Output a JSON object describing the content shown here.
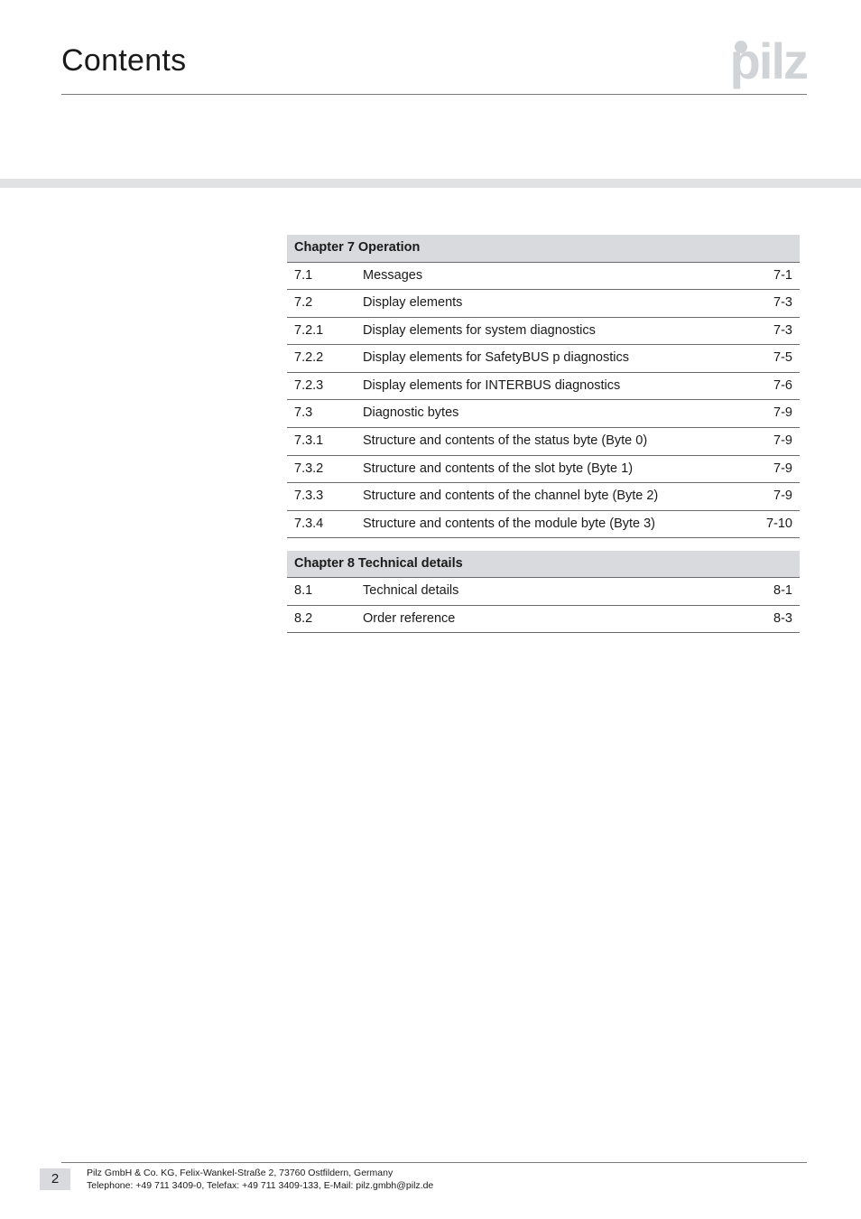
{
  "header": {
    "title": "Contents"
  },
  "logo": {
    "text": "pilz"
  },
  "chapters": [
    {
      "label": "Chapter 7",
      "title": "Operation",
      "rows": [
        {
          "num": "7.1",
          "title": "Messages",
          "page": "7-1"
        },
        {
          "num": "7.2",
          "title": "Display elements",
          "page": "7-3"
        },
        {
          "num": "7.2.1",
          "title": "Display elements for system diagnostics",
          "page": "7-3"
        },
        {
          "num": "7.2.2",
          "title": "Display elements for SafetyBUS p diagnostics",
          "page": "7-5"
        },
        {
          "num": "7.2.3",
          "title": "Display elements for INTERBUS diagnostics",
          "page": "7-6"
        },
        {
          "num": "7.3",
          "title": "Diagnostic bytes",
          "page": "7-9"
        },
        {
          "num": "7.3.1",
          "title": "Structure and contents of the status byte (Byte 0)",
          "page": "7-9"
        },
        {
          "num": "7.3.2",
          "title": "Structure and contents of the slot byte (Byte 1)",
          "page": "7-9"
        },
        {
          "num": "7.3.3",
          "title": "Structure and contents of the channel byte (Byte 2)",
          "page": "7-9"
        },
        {
          "num": "7.3.4",
          "title": "Structure and contents of the module byte (Byte 3)",
          "page": "7-10"
        }
      ]
    },
    {
      "label": "Chapter 8",
      "title": "Technical details",
      "rows": [
        {
          "num": "8.1",
          "title": "Technical details",
          "page": "8-1"
        },
        {
          "num": "8.2",
          "title": "Order reference",
          "page": "8-3"
        }
      ]
    }
  ],
  "footer": {
    "page_number": "2",
    "line1": "Pilz GmbH & Co. KG, Felix-Wankel-Straße 2, 73760 Ostfildern, Germany",
    "line2": "Telephone: +49 711 3409-0, Telefax: +49 711 3409-133, E-Mail: pilz.gmbh@pilz.de"
  }
}
